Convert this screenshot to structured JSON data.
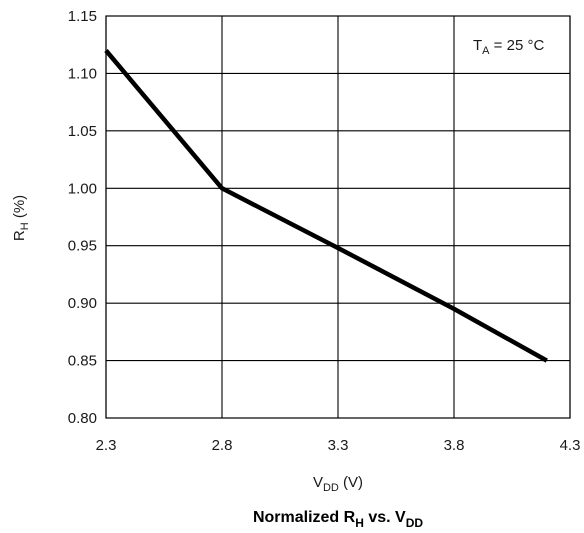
{
  "chart_data": {
    "type": "line",
    "title": {
      "main": "Normalized R",
      "main_sub": "H",
      "mid": " vs. V",
      "mid_sub": "DD"
    },
    "xlabel": {
      "main": "V",
      "sub": "DD",
      "unit": " (V)"
    },
    "ylabel": {
      "main": "R",
      "sub": "H",
      "unit": " (%)"
    },
    "annotation": {
      "main": "T",
      "sub": "A",
      "rest": " = 25 °C"
    },
    "xlim": [
      2.3,
      4.3
    ],
    "ylim": [
      0.8,
      1.15
    ],
    "x_ticks": [
      "2.3",
      "2.8",
      "3.3",
      "3.8",
      "4.3"
    ],
    "y_ticks": [
      "0.80",
      "0.85",
      "0.90",
      "0.95",
      "1.00",
      "1.05",
      "1.10",
      "1.15"
    ],
    "grid": true,
    "series": [
      {
        "x": [
          2.3,
          2.8,
          3.3,
          3.8,
          4.2
        ],
        "y": [
          1.12,
          1.0,
          0.948,
          0.895,
          0.85
        ]
      }
    ],
    "line_color": "#000000",
    "grid_color": "#000000"
  }
}
